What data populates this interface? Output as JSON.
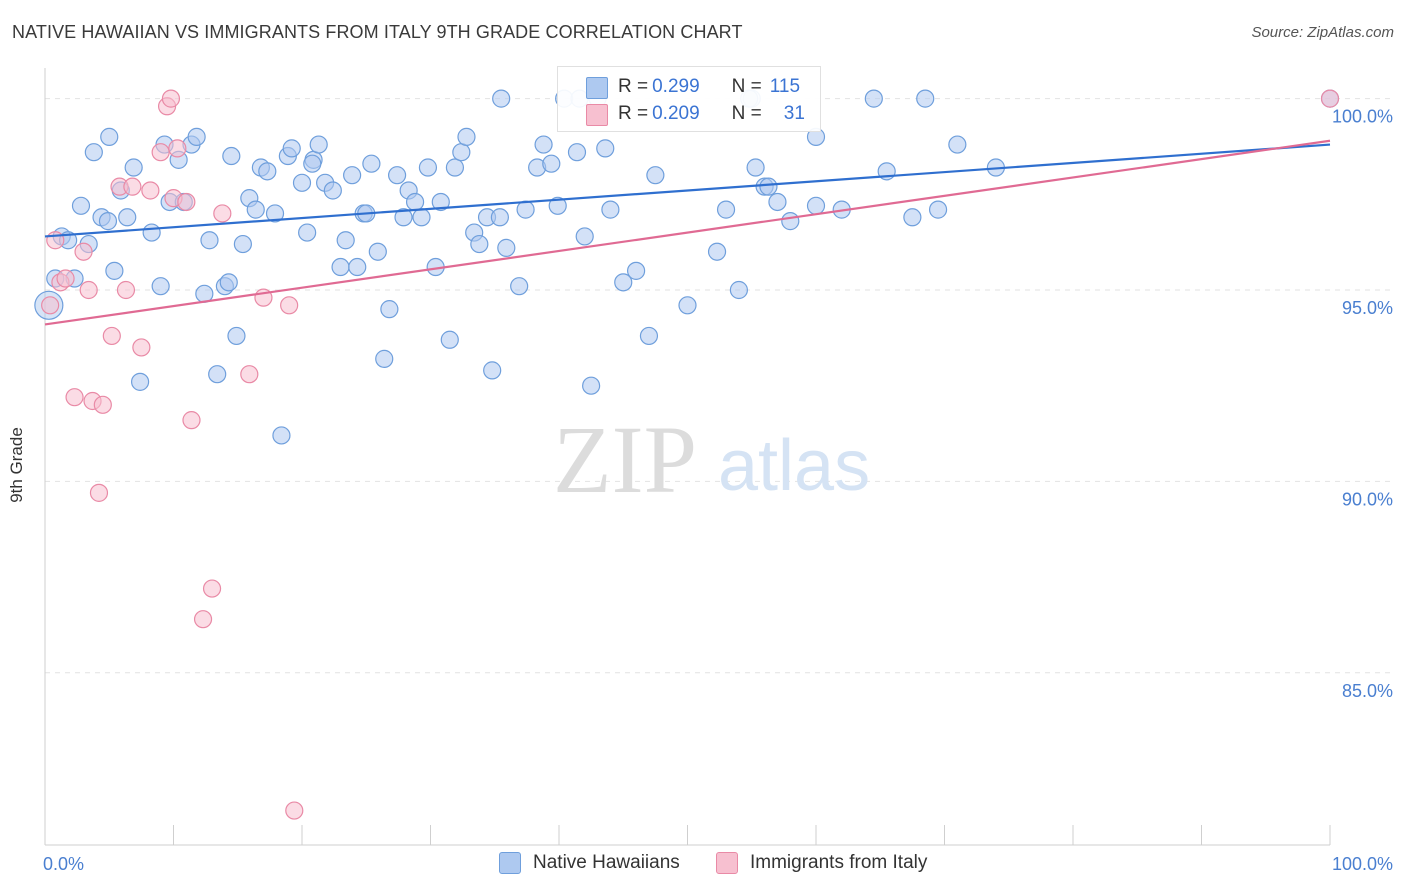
{
  "title": "NATIVE HAWAIIAN VS IMMIGRANTS FROM ITALY 9TH GRADE CORRELATION CHART",
  "source": "Source: ZipAtlas.com",
  "watermark": {
    "zip": "ZIP",
    "atlas": "atlas"
  },
  "colors": {
    "blue_fill": "#aec9f0",
    "blue_stroke": "#6f9fdc",
    "blue_line": "#2f6fcf",
    "pink_fill": "#f7c0d0",
    "pink_stroke": "#e98aa6",
    "pink_line": "#e06a93",
    "axis_text": "#4a7fd0",
    "grid": "#e2e2e2"
  },
  "legend": {
    "rows": [
      {
        "r_label": "R = ",
        "r_value": "0.299",
        "n_label": "N = ",
        "n_value": "115"
      },
      {
        "r_label": "R = ",
        "r_value": "0.209",
        "n_label": "N = ",
        "n_value": "31"
      }
    ]
  },
  "bottom_legend": [
    "Native Hawaiians",
    "Immigrants from Italy"
  ],
  "chart_data": {
    "type": "scatter",
    "title": "NATIVE HAWAIIAN VS IMMIGRANTS FROM ITALY 9TH GRADE CORRELATION CHART",
    "xlabel": "",
    "ylabel": "9th Grade",
    "xlim": [
      0,
      100
    ],
    "ylim": [
      80.5,
      100.8
    ],
    "x_tick_labels": [
      "0.0%",
      "100.0%"
    ],
    "y_ticks": [
      85,
      90,
      95,
      100
    ],
    "y_tick_labels": [
      "85.0%",
      "90.0%",
      "95.0%",
      "100.0%"
    ],
    "grid": true,
    "series": [
      {
        "name": "Native Hawaiians",
        "color": "#6f9fdc",
        "trend": {
          "x": [
            0,
            100
          ],
          "y": [
            96.4,
            98.8
          ]
        },
        "points": [
          [
            0.8,
            95.3
          ],
          [
            1.3,
            96.4
          ],
          [
            1.8,
            96.3
          ],
          [
            2.3,
            95.3
          ],
          [
            2.8,
            97.2
          ],
          [
            3.4,
            96.2
          ],
          [
            3.8,
            98.6
          ],
          [
            4.4,
            96.9
          ],
          [
            4.9,
            96.8
          ],
          [
            5.4,
            95.5
          ],
          [
            5.9,
            97.6
          ],
          [
            6.4,
            96.9
          ],
          [
            6.9,
            98.2
          ],
          [
            7.4,
            92.6
          ],
          [
            8.3,
            96.5
          ],
          [
            9.0,
            95.1
          ],
          [
            9.3,
            98.8
          ],
          [
            9.7,
            97.3
          ],
          [
            10.4,
            98.4
          ],
          [
            10.8,
            97.3
          ],
          [
            11.4,
            98.8
          ],
          [
            11.8,
            99.0
          ],
          [
            12.4,
            94.9
          ],
          [
            12.8,
            96.3
          ],
          [
            13.4,
            92.8
          ],
          [
            14.0,
            95.1
          ],
          [
            14.5,
            98.5
          ],
          [
            14.9,
            93.8
          ],
          [
            15.4,
            96.2
          ],
          [
            15.9,
            97.4
          ],
          [
            16.4,
            97.1
          ],
          [
            16.8,
            98.2
          ],
          [
            17.3,
            98.1
          ],
          [
            17.9,
            97.0
          ],
          [
            18.4,
            91.2
          ],
          [
            18.9,
            98.5
          ],
          [
            19.2,
            98.7
          ],
          [
            20.0,
            97.8
          ],
          [
            20.4,
            96.5
          ],
          [
            20.9,
            98.4
          ],
          [
            21.3,
            98.8
          ],
          [
            21.8,
            97.8
          ],
          [
            22.4,
            97.6
          ],
          [
            23.0,
            95.6
          ],
          [
            23.4,
            96.3
          ],
          [
            23.9,
            98.0
          ],
          [
            24.3,
            95.6
          ],
          [
            24.8,
            97.0
          ],
          [
            25.4,
            98.3
          ],
          [
            25.9,
            96.0
          ],
          [
            26.4,
            93.2
          ],
          [
            26.8,
            94.5
          ],
          [
            27.4,
            98.0
          ],
          [
            27.9,
            96.9
          ],
          [
            28.3,
            97.6
          ],
          [
            28.8,
            97.3
          ],
          [
            29.3,
            96.9
          ],
          [
            29.8,
            98.2
          ],
          [
            30.4,
            95.6
          ],
          [
            30.8,
            97.3
          ],
          [
            31.5,
            93.7
          ],
          [
            31.9,
            98.2
          ],
          [
            32.4,
            98.6
          ],
          [
            32.8,
            99.0
          ],
          [
            33.4,
            96.5
          ],
          [
            33.8,
            96.2
          ],
          [
            34.4,
            96.9
          ],
          [
            34.8,
            92.9
          ],
          [
            35.4,
            96.9
          ],
          [
            35.9,
            96.1
          ],
          [
            36.9,
            95.1
          ],
          [
            37.4,
            97.1
          ],
          [
            38.3,
            98.2
          ],
          [
            38.8,
            98.8
          ],
          [
            39.4,
            98.3
          ],
          [
            39.9,
            97.2
          ],
          [
            40.4,
            100.0
          ],
          [
            41.4,
            98.6
          ],
          [
            42.0,
            96.4
          ],
          [
            42.5,
            92.5
          ],
          [
            43.0,
            100.0
          ],
          [
            43.6,
            98.7
          ],
          [
            44.0,
            97.1
          ],
          [
            45.0,
            95.2
          ],
          [
            47.0,
            93.8
          ],
          [
            47.5,
            98.0
          ],
          [
            50.0,
            94.6
          ],
          [
            52.3,
            96.0
          ],
          [
            53.0,
            97.1
          ],
          [
            55.0,
            100.0
          ],
          [
            55.3,
            98.2
          ],
          [
            56.0,
            97.7
          ],
          [
            56.3,
            97.7
          ],
          [
            57.0,
            97.3
          ],
          [
            58.0,
            96.8
          ],
          [
            60.0,
            97.2
          ],
          [
            62.0,
            97.1
          ],
          [
            64.5,
            100.0
          ],
          [
            65.5,
            98.1
          ],
          [
            67.5,
            96.9
          ],
          [
            68.5,
            100.0
          ],
          [
            69.5,
            97.1
          ],
          [
            71.0,
            98.8
          ],
          [
            74.0,
            98.2
          ],
          [
            100.0,
            100.0
          ],
          [
            5.0,
            99.0
          ],
          [
            35.5,
            100.0
          ],
          [
            54.8,
            100.0
          ],
          [
            41.6,
            100.0
          ],
          [
            20.8,
            98.3
          ],
          [
            14.3,
            95.2
          ],
          [
            25.0,
            97.0
          ],
          [
            46.0,
            95.5
          ],
          [
            60.0,
            99.0
          ],
          [
            54.0,
            95.0
          ]
        ]
      },
      {
        "name": "Immigrants from Italy",
        "color": "#e98aa6",
        "trend": {
          "x": [
            0,
            100
          ],
          "y": [
            94.1,
            98.9
          ]
        },
        "points": [
          [
            0.4,
            94.6
          ],
          [
            0.8,
            96.3
          ],
          [
            1.2,
            95.2
          ],
          [
            1.6,
            95.3
          ],
          [
            2.3,
            92.2
          ],
          [
            3.0,
            96.0
          ],
          [
            3.4,
            95.0
          ],
          [
            3.7,
            92.1
          ],
          [
            4.2,
            89.7
          ],
          [
            4.5,
            92.0
          ],
          [
            5.2,
            93.8
          ],
          [
            5.8,
            97.7
          ],
          [
            6.3,
            95.0
          ],
          [
            6.8,
            97.7
          ],
          [
            7.5,
            93.5
          ],
          [
            8.2,
            97.6
          ],
          [
            9.0,
            98.6
          ],
          [
            9.5,
            99.8
          ],
          [
            9.8,
            100.0
          ],
          [
            10.0,
            97.4
          ],
          [
            10.3,
            98.7
          ],
          [
            11.0,
            97.3
          ],
          [
            11.4,
            91.6
          ],
          [
            12.3,
            86.4
          ],
          [
            13.0,
            87.2
          ],
          [
            13.8,
            97.0
          ],
          [
            15.9,
            92.8
          ],
          [
            17.0,
            94.8
          ],
          [
            19.0,
            94.6
          ],
          [
            19.4,
            81.4
          ],
          [
            100.0,
            100.0
          ]
        ]
      }
    ]
  }
}
